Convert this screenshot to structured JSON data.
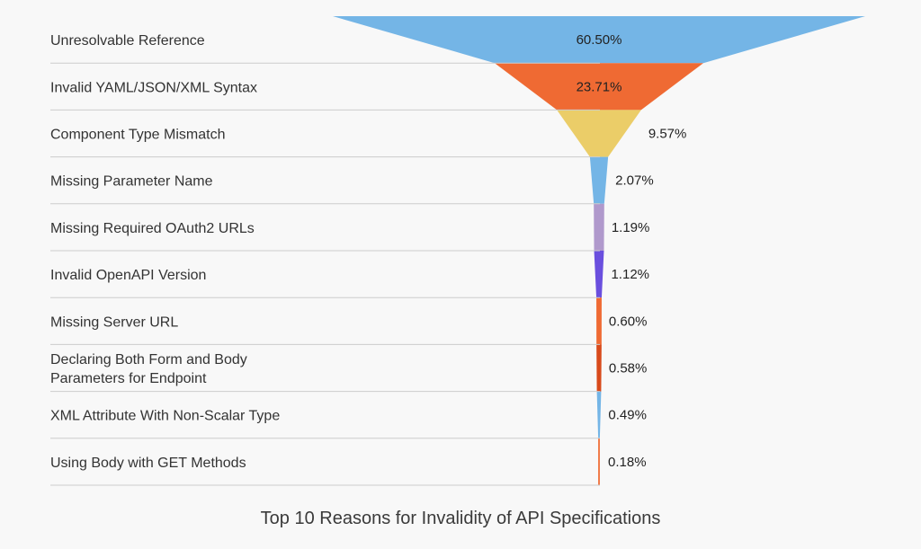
{
  "chart_data": {
    "type": "funnel",
    "title": "Top 10 Reasons for Invalidity of API Specifications",
    "categories": [
      "Unresolvable Reference",
      "Invalid YAML/JSON/XML Syntax",
      "Component Type Mismatch",
      "Missing Parameter Name",
      "Missing Required OAuth2 URLs",
      "Invalid OpenAPI Version",
      "Missing Server URL",
      "Declaring Both Form and Body\nParameters for Endpoint",
      "XML Attribute With Non-Scalar Type",
      "Using Body with GET Methods"
    ],
    "values": [
      60.5,
      23.71,
      9.57,
      2.07,
      1.19,
      1.12,
      0.6,
      0.58,
      0.49,
      0.18
    ],
    "value_labels": [
      "60.50%",
      "23.71%",
      "9.57%",
      "2.07%",
      "1.19%",
      "1.12%",
      "0.60%",
      "0.58%",
      "0.49%",
      "0.18%"
    ],
    "colors": [
      "#74b5e6",
      "#ef6a33",
      "#ebcd68",
      "#74b5e6",
      "#b099cc",
      "#6a4fde",
      "#ef6a33",
      "#d84a1b",
      "#74b5e6",
      "#ef6a33"
    ],
    "grid_color": "#cccccc"
  }
}
